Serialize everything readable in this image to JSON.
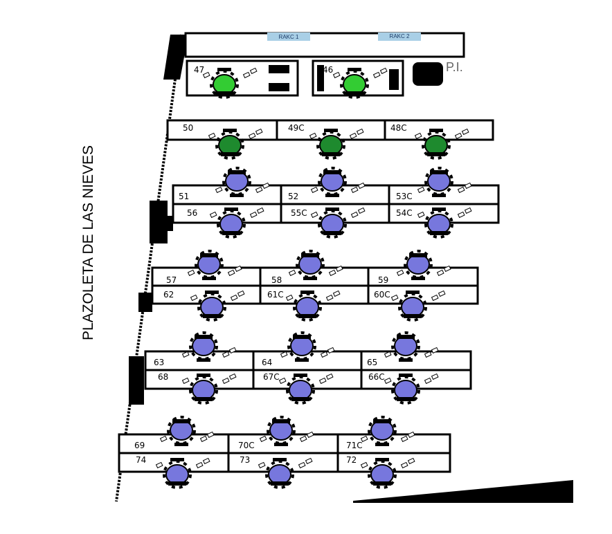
{
  "street_label": "PLAZOLETA DE LAS NIEVES",
  "racks": [
    {
      "label": "RAKC 1"
    },
    {
      "label": "RAKC 2"
    }
  ],
  "pi_label": "P.I.",
  "colors": {
    "green_seat": "#33cc33",
    "dark_green_seat": "#1e8a2e",
    "blue_seat": "#7777dd",
    "rack_fill": "#a9cfe6"
  },
  "stations": [
    {
      "label": "47",
      "color": "green"
    },
    {
      "label": "46",
      "color": "green"
    },
    {
      "label": "50",
      "color": "dark_green"
    },
    {
      "label": "49C",
      "color": "dark_green"
    },
    {
      "label": "48C",
      "color": "dark_green"
    },
    {
      "label": "51",
      "color": "blue"
    },
    {
      "label": "52",
      "color": "blue"
    },
    {
      "label": "53C",
      "color": "blue"
    },
    {
      "label": "56",
      "color": "blue"
    },
    {
      "label": "55C",
      "color": "blue"
    },
    {
      "label": "54C",
      "color": "blue"
    },
    {
      "label": "57",
      "color": "blue"
    },
    {
      "label": "58",
      "color": "blue"
    },
    {
      "label": "59",
      "color": "blue"
    },
    {
      "label": "62",
      "color": "blue"
    },
    {
      "label": "61C",
      "color": "blue"
    },
    {
      "label": "60C",
      "color": "blue"
    },
    {
      "label": "63",
      "color": "blue"
    },
    {
      "label": "64",
      "color": "blue"
    },
    {
      "label": "65",
      "color": "blue"
    },
    {
      "label": "68",
      "color": "blue"
    },
    {
      "label": "67C",
      "color": "blue"
    },
    {
      "label": "66C",
      "color": "blue"
    },
    {
      "label": "69",
      "color": "blue"
    },
    {
      "label": "70C",
      "color": "blue"
    },
    {
      "label": "71C",
      "color": "blue"
    },
    {
      "label": "74",
      "color": "blue"
    },
    {
      "label": "73",
      "color": "blue"
    },
    {
      "label": "72",
      "color": "blue"
    }
  ]
}
